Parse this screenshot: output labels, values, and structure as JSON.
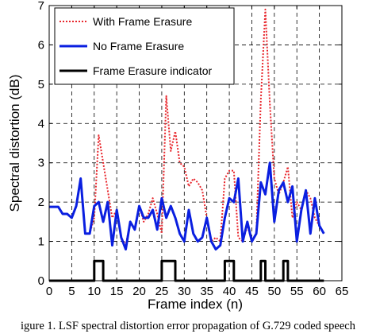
{
  "chart_data": {
    "type": "line",
    "xlabel": "Frame index (n)",
    "ylabel": "Spectral distortion (dB)",
    "xlim": [
      0,
      65
    ],
    "ylim": [
      0,
      7
    ],
    "xticks": [
      0,
      5,
      10,
      15,
      20,
      25,
      30,
      35,
      40,
      45,
      50,
      55,
      60,
      65
    ],
    "yticks": [
      0,
      1,
      2,
      3,
      4,
      5,
      6,
      7
    ],
    "grid": true,
    "legend_position": "top-left",
    "caption": "igure 1. LSF spectral distortion error propagation of G.729 coded speech",
    "series": [
      {
        "name": "With Frame Erasure",
        "color": "#e8262c",
        "style": "dotted",
        "x": [
          0,
          1,
          2,
          3,
          4,
          5,
          6,
          7,
          8,
          9,
          10,
          11,
          12,
          13,
          14,
          15,
          16,
          17,
          18,
          19,
          20,
          21,
          22,
          23,
          24,
          25,
          26,
          27,
          28,
          29,
          30,
          31,
          32,
          33,
          34,
          35,
          36,
          37,
          38,
          39,
          40,
          41,
          42,
          43,
          44,
          45,
          46,
          47,
          48,
          49,
          50,
          51,
          52,
          53,
          54,
          55,
          56,
          57,
          58,
          59,
          60,
          61
        ],
        "y": [
          1.88,
          1.88,
          1.88,
          1.7,
          1.7,
          1.6,
          1.9,
          2.6,
          1.2,
          1.2,
          1.6,
          3.7,
          3.0,
          2.3,
          1.6,
          1.8,
          1.1,
          0.9,
          1.5,
          1.3,
          1.9,
          1.5,
          1.7,
          2.1,
          1.7,
          1.2,
          4.7,
          3.3,
          3.8,
          3.0,
          2.9,
          2.4,
          2.6,
          2.5,
          2.3,
          1.6,
          1.0,
          1.1,
          1.0,
          2.6,
          2.8,
          2.8,
          1.1,
          1.0,
          1.4,
          1.0,
          1.2,
          4.6,
          6.9,
          4.5,
          2.6,
          2.2,
          2.5,
          2.9,
          1.6,
          2.0,
          1.8,
          2.3,
          2.1,
          1.6,
          1.4,
          1.2
        ]
      },
      {
        "name": "No Frame Erasure",
        "color": "#0a1fe0",
        "style": "solid",
        "x": [
          0,
          1,
          2,
          3,
          4,
          5,
          6,
          7,
          8,
          9,
          10,
          11,
          12,
          13,
          14,
          15,
          16,
          17,
          18,
          19,
          20,
          21,
          22,
          23,
          24,
          25,
          26,
          27,
          28,
          29,
          30,
          31,
          32,
          33,
          34,
          35,
          36,
          37,
          38,
          39,
          40,
          41,
          42,
          43,
          44,
          45,
          46,
          47,
          48,
          49,
          50,
          51,
          52,
          53,
          54,
          55,
          56,
          57,
          58,
          59,
          60,
          61
        ],
        "y": [
          1.88,
          1.88,
          1.88,
          1.7,
          1.7,
          1.6,
          1.9,
          2.6,
          1.2,
          1.2,
          1.9,
          2.0,
          1.5,
          2.0,
          0.9,
          1.8,
          1.1,
          0.8,
          1.5,
          1.3,
          1.9,
          1.6,
          1.6,
          1.8,
          1.3,
          2.1,
          1.6,
          1.9,
          1.6,
          1.2,
          1.0,
          1.8,
          1.2,
          1.0,
          1.1,
          1.6,
          1.0,
          0.8,
          0.9,
          1.6,
          2.1,
          2.0,
          2.6,
          1.0,
          1.5,
          1.0,
          1.2,
          2.5,
          2.2,
          3.0,
          1.5,
          2.3,
          2.5,
          2.0,
          2.4,
          1.0,
          1.8,
          2.3,
          1.2,
          2.1,
          1.4,
          1.2
        ]
      },
      {
        "name": "Frame Erasure indicator",
        "color": "#000000",
        "style": "solid",
        "x": [
          0,
          10,
          10,
          12,
          12,
          25,
          25,
          28,
          28,
          39,
          39,
          41,
          41,
          47,
          47,
          48,
          48,
          52,
          52,
          53,
          53,
          61
        ],
        "y": [
          0,
          0,
          0.5,
          0.5,
          0,
          0,
          0.5,
          0.5,
          0,
          0,
          0.5,
          0.5,
          0,
          0,
          0.5,
          0.5,
          0,
          0,
          0.5,
          0.5,
          0,
          0
        ]
      }
    ]
  }
}
